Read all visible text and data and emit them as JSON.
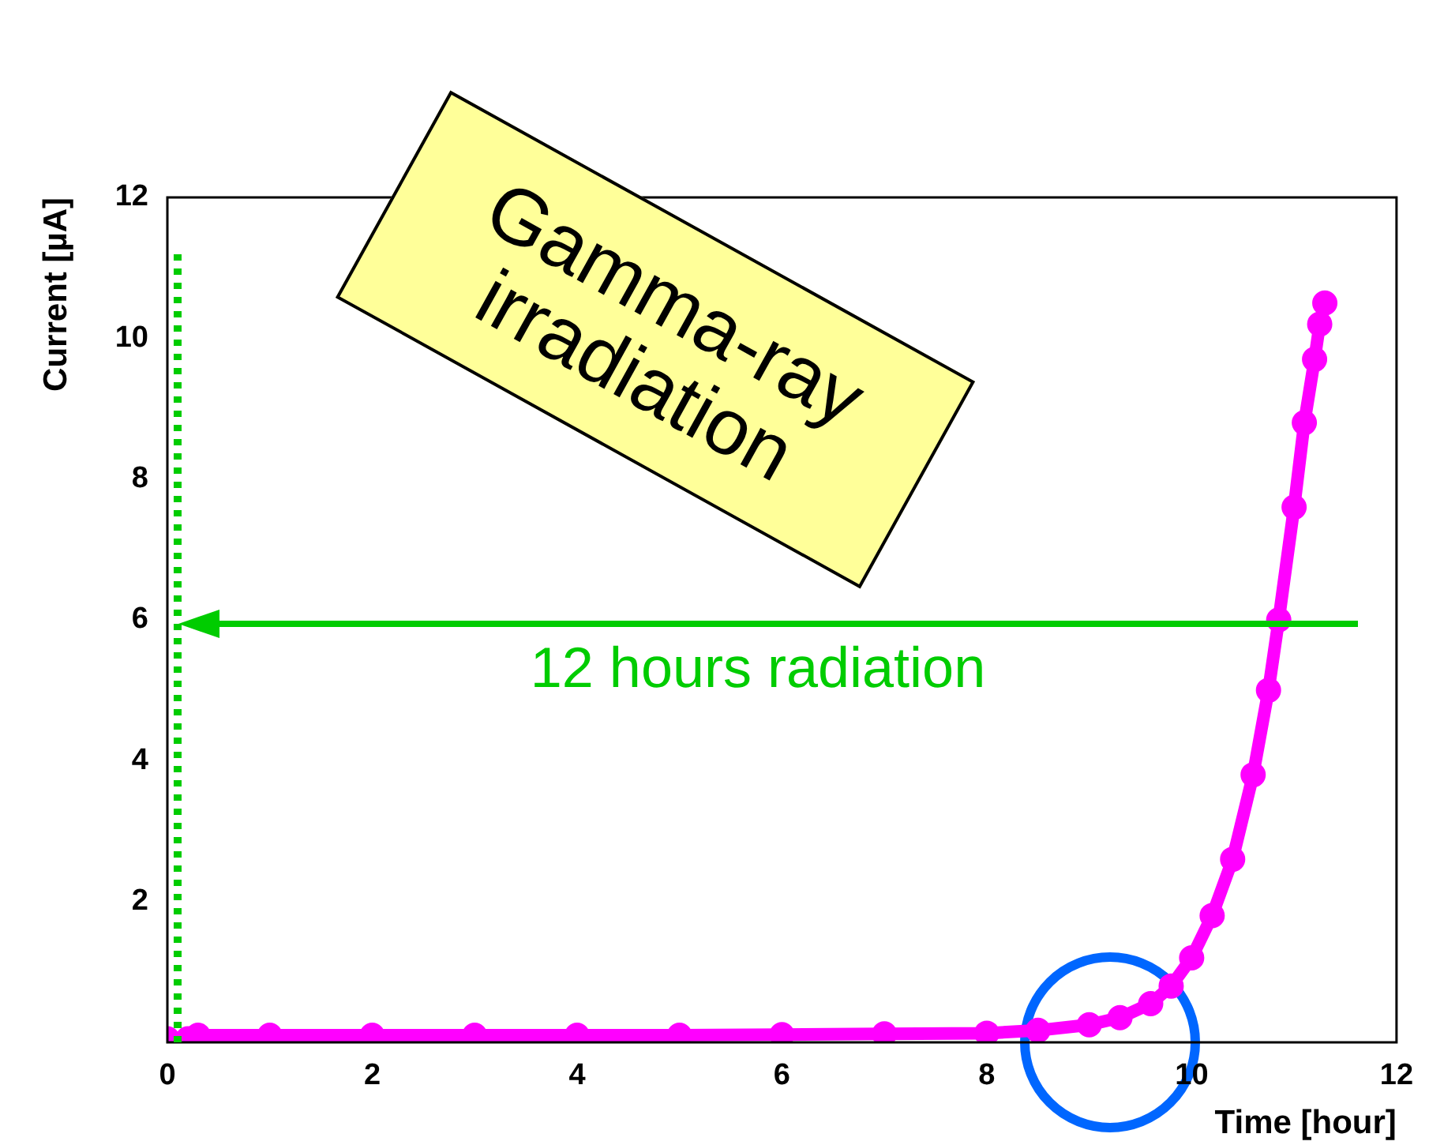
{
  "chart_data": {
    "type": "line",
    "xlabel": "Time [hour]",
    "ylabel": "Current [µA]",
    "x": [
      0,
      0.2,
      0.3,
      1,
      2,
      3,
      4,
      5,
      6,
      7,
      8,
      8.5,
      9,
      9.3,
      9.6,
      9.8,
      10,
      10.2,
      10.4,
      10.6,
      10.75,
      10.85,
      11,
      11.1,
      11.2,
      11.25,
      11.3
    ],
    "series": [
      {
        "color": "#ff00ff",
        "values": [
          0.05,
          0.05,
          0.1,
          0.1,
          0.1,
          0.1,
          0.1,
          0.1,
          0.11,
          0.12,
          0.13,
          0.17,
          0.25,
          0.35,
          0.55,
          0.8,
          1.2,
          1.8,
          2.6,
          3.8,
          5,
          6,
          7.6,
          8.8,
          9.7,
          10.2,
          10.5
        ]
      }
    ],
    "xlim": [
      0,
      12
    ],
    "xticks": [
      0,
      2,
      4,
      6,
      8,
      10,
      12
    ],
    "ylim": [
      0,
      12
    ],
    "yticks": [
      2,
      4,
      6,
      8,
      10,
      12
    ],
    "marker": "circle",
    "line_style": "solid",
    "grid": false,
    "legend": false,
    "ref_lines": [
      {
        "axis": "x",
        "value": 0.1,
        "color": "#00cc00",
        "line_style": "dotted"
      }
    ],
    "annotations": [
      "Gamma-ray irradiation",
      "12 hours radiation"
    ]
  }
}
